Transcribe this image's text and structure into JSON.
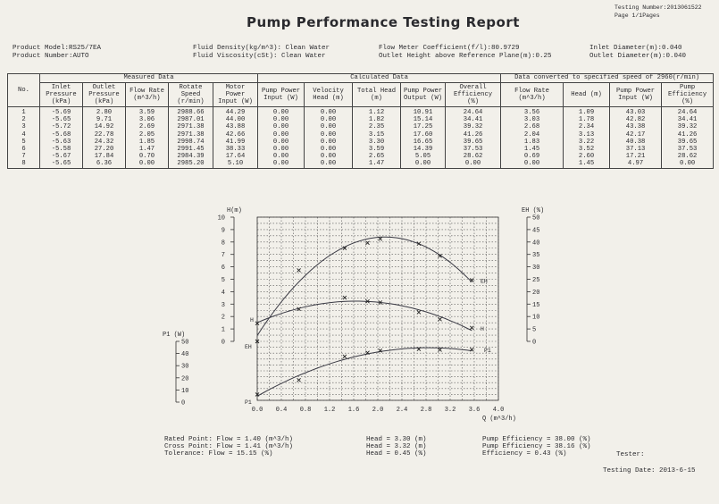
{
  "header": {
    "title": "Pump Performance Testing Report",
    "testing_number": "Testing Number:2013061522",
    "page": "Page 1/1Pages",
    "product_model": "Product Model:RS25/7EA",
    "product_number": "Product Number:AUTO",
    "fluid_density": "Fluid Density(kg/m^3): Clean Water",
    "fluid_viscosity": "Fluid Viscosity(cSt): Clean Water",
    "flow_meter": "Flow Meter Coefficient(f/l):80.9729",
    "outlet_height": "Outlet Height above Reference Plane(m):0.25",
    "inlet_diameter": "Inlet Diameter(m):0.040",
    "outlet_diameter": "Outlet Diameter(m):0.040"
  },
  "table": {
    "group_measured": "Measured Data",
    "group_calculated": "Calculated Data",
    "group_converted": "Data converted to specified speed of 2960(r/min)",
    "columns": [
      {
        "label": "No.",
        "values": [
          "1",
          "2",
          "3",
          "4",
          "5",
          "6",
          "7",
          "8"
        ]
      },
      {
        "label": "Inlet Pressure (kPa)",
        "values": [
          "-5.69",
          "-5.65",
          "-5.72",
          "-5.68",
          "-5.63",
          "-5.58",
          "-5.67",
          "-5.65"
        ]
      },
      {
        "label": "Outlet Pressure (kPa)",
        "values": [
          "2.80",
          "9.71",
          "14.92",
          "22.78",
          "24.32",
          "27.20",
          "17.84",
          "6.36"
        ]
      },
      {
        "label": "Flow Rate (m^3/h)",
        "values": [
          "3.59",
          "3.06",
          "2.69",
          "2.05",
          "1.85",
          "1.47",
          "0.70",
          "0.00"
        ]
      },
      {
        "label": "Rotate Speed (r/min)",
        "values": [
          "2988.66",
          "2987.01",
          "2971.38",
          "2971.38",
          "2998.74",
          "2991.45",
          "2984.39",
          "2985.20"
        ]
      },
      {
        "label": "Motor Power Input (W)",
        "values": [
          "44.29",
          "44.00",
          "43.88",
          "42.66",
          "41.99",
          "38.33",
          "17.64",
          "5.10"
        ]
      },
      {
        "label": "Pump Power Input (W)",
        "values": [
          "0.00",
          "0.00",
          "0.00",
          "0.00",
          "0.00",
          "0.00",
          "0.00",
          "0.00"
        ]
      },
      {
        "label": "Velocity Head (m)",
        "values": [
          "0.00",
          "0.00",
          "0.00",
          "0.00",
          "0.00",
          "0.00",
          "0.00",
          "0.00"
        ]
      },
      {
        "label": "Total Head (m)",
        "values": [
          "1.12",
          "1.82",
          "2.35",
          "3.15",
          "3.30",
          "3.59",
          "2.65",
          "1.47"
        ]
      },
      {
        "label": "Pump Power Output (W)",
        "values": [
          "10.91",
          "15.14",
          "17.25",
          "17.60",
          "16.65",
          "14.39",
          "5.05",
          "0.00"
        ]
      },
      {
        "label": "Overall Efficiency (%)",
        "values": [
          "24.64",
          "34.41",
          "39.32",
          "41.26",
          "39.65",
          "37.53",
          "28.62",
          "0.00"
        ]
      },
      {
        "label": "Flow Rate (m^3/h)",
        "values": [
          "3.56",
          "3.03",
          "2.68",
          "2.04",
          "1.83",
          "1.45",
          "0.69",
          "0.00"
        ]
      },
      {
        "label": "Head (m)",
        "values": [
          "1.09",
          "1.78",
          "2.34",
          "3.13",
          "3.22",
          "3.52",
          "2.60",
          "1.45"
        ]
      },
      {
        "label": "Pump Power Input (W)",
        "values": [
          "43.03",
          "42.82",
          "43.38",
          "42.17",
          "40.38",
          "37.13",
          "17.21",
          "4.97"
        ]
      },
      {
        "label": "Pump Efficiency (%)",
        "values": [
          "24.64",
          "34.41",
          "39.32",
          "41.26",
          "39.65",
          "37.53",
          "28.62",
          "0.00"
        ]
      }
    ]
  },
  "chart_data": {
    "type": "line",
    "xlabel": "Q (m^3/h)",
    "x_ticks": [
      "0.0",
      "0.4",
      "0.8",
      "1.2",
      "1.6",
      "2.0",
      "2.4",
      "2.8",
      "3.2",
      "3.6",
      "4.0"
    ],
    "xlim": [
      0,
      4.0
    ],
    "left_axis_label": "H(m)",
    "left_ticks": [
      "10",
      "9",
      "8",
      "7",
      "6",
      "5",
      "4",
      "3",
      "2",
      "1",
      "0"
    ],
    "ylim_head": [
      0,
      10
    ],
    "right_axis_label": "EH (%)",
    "right_ticks": [
      "50",
      "45",
      "40",
      "35",
      "30",
      "25",
      "20",
      "15",
      "10",
      "5",
      "0"
    ],
    "ylim_eff": [
      0,
      50
    ],
    "power_axis_label": "P1 (W)",
    "power_ticks": [
      "50",
      "40",
      "30",
      "20",
      "10",
      "0"
    ],
    "ylim_power": [
      0,
      50
    ],
    "grid": true,
    "curve_labels": {
      "head": "H",
      "efficiency": "EH",
      "power": "P1"
    },
    "series": [
      {
        "name": "H",
        "x": [
          3.56,
          3.03,
          2.68,
          2.04,
          1.83,
          1.45,
          0.69,
          0.0
        ],
        "values": [
          1.09,
          1.78,
          2.34,
          3.13,
          3.22,
          3.52,
          2.6,
          1.45
        ]
      },
      {
        "name": "EH",
        "x": [
          3.56,
          3.03,
          2.68,
          2.04,
          1.83,
          1.45,
          0.69,
          0.0
        ],
        "values": [
          24.64,
          34.41,
          39.32,
          41.26,
          39.65,
          37.53,
          28.62,
          0.0
        ]
      },
      {
        "name": "P1",
        "x": [
          3.56,
          3.03,
          2.68,
          2.04,
          1.83,
          1.45,
          0.69,
          0.0
        ],
        "values": [
          43.03,
          42.82,
          43.38,
          42.17,
          40.38,
          37.13,
          17.21,
          4.97
        ]
      }
    ]
  },
  "footer": {
    "rated_point": "Rated Point:   Flow = 1.40 (m^3/h)",
    "cross_point": "Cross Point: Flow = 1.41 (m^3/h)",
    "tolerance": "Tolerance:     Flow = 15.15 (%)",
    "head_rated": "Head = 3.30 (m)",
    "head_cross": "Head = 3.32 (m)",
    "head_tol": "Head = 0.45 (%)",
    "eff_rated": "Pump Efficiency = 38.00 (%)",
    "eff_cross": "Pump Efficiency = 38.16 (%)",
    "eff_tol": "Efficiency = 0.43 (%)",
    "tester": "Tester:",
    "testing_date": "Testing Date: 2013-6-15"
  }
}
